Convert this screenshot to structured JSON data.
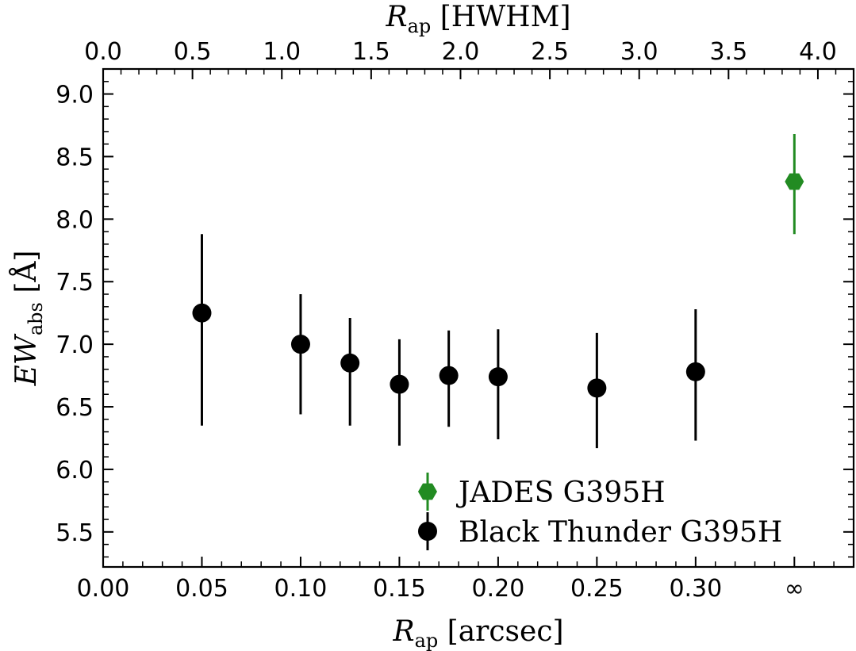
{
  "chart_data": {
    "type": "scatter",
    "xlabel_bottom": "R_ap [arcsec]",
    "xlabel_top": "R_ap [HWHM]",
    "ylabel": "EW_abs [Å]",
    "axis_title_parts": {
      "bottom": {
        "main": "R",
        "sub": "ap",
        "rest": " [arcsec]"
      },
      "top": {
        "main": "R",
        "sub": "ap",
        "rest": " [HWHM]"
      },
      "left": {
        "main": "EW",
        "sub": "abs",
        "rest": " [Å]"
      }
    },
    "xlim": [
      0.0,
      0.38
    ],
    "ylim": [
      5.22,
      9.2
    ],
    "top_xlim": [
      0.0,
      4.2
    ],
    "x_ticks": [
      {
        "value": 0.0,
        "label": "0.00"
      },
      {
        "value": 0.05,
        "label": "0.05"
      },
      {
        "value": 0.1,
        "label": "0.10"
      },
      {
        "value": 0.15,
        "label": "0.15"
      },
      {
        "value": 0.2,
        "label": "0.20"
      },
      {
        "value": 0.25,
        "label": "0.25"
      },
      {
        "value": 0.3,
        "label": "0.30"
      },
      {
        "value": 0.35,
        "label": "∞"
      }
    ],
    "top_ticks": [
      {
        "value": 0.0,
        "label": "0.0"
      },
      {
        "value": 0.5,
        "label": "0.5"
      },
      {
        "value": 1.0,
        "label": "1.0"
      },
      {
        "value": 1.5,
        "label": "1.5"
      },
      {
        "value": 2.0,
        "label": "2.0"
      },
      {
        "value": 2.5,
        "label": "2.5"
      },
      {
        "value": 3.0,
        "label": "3.0"
      },
      {
        "value": 3.5,
        "label": "3.5"
      },
      {
        "value": 4.0,
        "label": "4.0"
      }
    ],
    "y_ticks": [
      {
        "value": 5.5,
        "label": "5.5"
      },
      {
        "value": 6.0,
        "label": "6.0"
      },
      {
        "value": 6.5,
        "label": "6.5"
      },
      {
        "value": 7.0,
        "label": "7.0"
      },
      {
        "value": 7.5,
        "label": "7.5"
      },
      {
        "value": 8.0,
        "label": "8.0"
      },
      {
        "value": 8.5,
        "label": "8.5"
      },
      {
        "value": 9.0,
        "label": "9.0"
      }
    ],
    "grid": false,
    "legend_position": "bottom-right",
    "series": [
      {
        "name": "JADES G395H",
        "marker": "hexagon",
        "color": "#228B22",
        "points": [
          {
            "x": 0.35,
            "y": 8.3,
            "yerr_low": 7.88,
            "yerr_high": 8.68
          }
        ]
      },
      {
        "name": "Black Thunder G395H",
        "marker": "circle",
        "color": "#000000",
        "points": [
          {
            "x": 0.05,
            "y": 7.25,
            "yerr_low": 6.35,
            "yerr_high": 7.88
          },
          {
            "x": 0.1,
            "y": 7.0,
            "yerr_low": 6.44,
            "yerr_high": 7.4
          },
          {
            "x": 0.125,
            "y": 6.85,
            "yerr_low": 6.35,
            "yerr_high": 7.21
          },
          {
            "x": 0.15,
            "y": 6.68,
            "yerr_low": 6.19,
            "yerr_high": 7.04
          },
          {
            "x": 0.175,
            "y": 6.75,
            "yerr_low": 6.34,
            "yerr_high": 7.11
          },
          {
            "x": 0.2,
            "y": 6.74,
            "yerr_low": 6.24,
            "yerr_high": 7.12
          },
          {
            "x": 0.25,
            "y": 6.65,
            "yerr_low": 6.17,
            "yerr_high": 7.09
          },
          {
            "x": 0.3,
            "y": 6.78,
            "yerr_low": 6.23,
            "yerr_high": 7.28
          }
        ]
      }
    ]
  }
}
